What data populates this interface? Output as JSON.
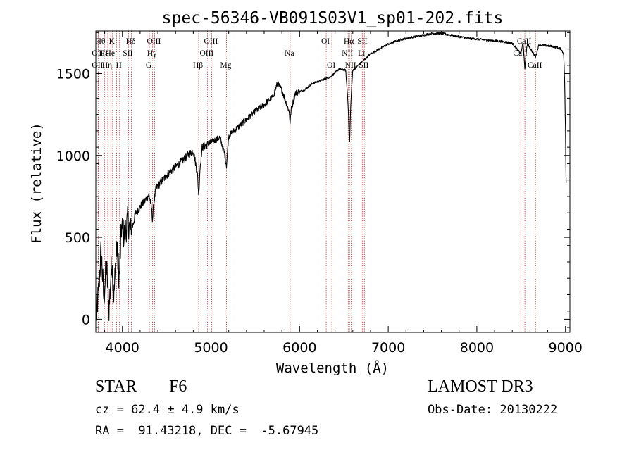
{
  "chart_data": {
    "type": "line",
    "title": "spec-56346-VB091S03V1_sp01-202.fits",
    "xlabel": "Wavelength (Å)",
    "ylabel": "Flux (relative)",
    "xlim": [
      3700,
      9050
    ],
    "ylim": [
      -80,
      1760
    ],
    "xticks": [
      4000,
      5000,
      6000,
      7000,
      8000,
      9000
    ],
    "xtick_labels": [
      "4000",
      "5000",
      "6000",
      "7000",
      "8000",
      "9000"
    ],
    "yticks": [
      0,
      500,
      1000,
      1500
    ],
    "ytick_labels": [
      "0",
      "500",
      "1000",
      "1500"
    ],
    "series": [
      {
        "name": "flux",
        "color": "#000000",
        "anchors": [
          [
            3705,
            30
          ],
          [
            3730,
            160
          ],
          [
            3760,
            420
          ],
          [
            3790,
            130
          ],
          [
            3820,
            330
          ],
          [
            3850,
            60
          ],
          [
            3880,
            370
          ],
          [
            3905,
            140
          ],
          [
            3935,
            450
          ],
          [
            3965,
            250
          ],
          [
            3990,
            560
          ],
          [
            4020,
            510
          ],
          [
            4060,
            600
          ],
          [
            4100,
            530
          ],
          [
            4150,
            650
          ],
          [
            4250,
            720
          ],
          [
            4300,
            760
          ],
          [
            4340,
            660
          ],
          [
            4380,
            800
          ],
          [
            4500,
            880
          ],
          [
            4600,
            930
          ],
          [
            4700,
            980
          ],
          [
            4800,
            1030
          ],
          [
            4861,
            850
          ],
          [
            4900,
            1050
          ],
          [
            5000,
            1080
          ],
          [
            5100,
            1110
          ],
          [
            5175,
            970
          ],
          [
            5200,
            1120
          ],
          [
            5300,
            1170
          ],
          [
            5400,
            1220
          ],
          [
            5500,
            1270
          ],
          [
            5600,
            1310
          ],
          [
            5700,
            1360
          ],
          [
            5750,
            1440
          ],
          [
            5800,
            1400
          ],
          [
            5893,
            1250
          ],
          [
            5950,
            1380
          ],
          [
            6050,
            1400
          ],
          [
            6150,
            1440
          ],
          [
            6250,
            1460
          ],
          [
            6350,
            1480
          ],
          [
            6450,
            1530
          ],
          [
            6520,
            1520
          ],
          [
            6563,
            1200
          ],
          [
            6600,
            1520
          ],
          [
            6700,
            1570
          ],
          [
            6800,
            1620
          ],
          [
            6900,
            1650
          ],
          [
            7000,
            1680
          ],
          [
            7100,
            1700
          ],
          [
            7200,
            1715
          ],
          [
            7300,
            1725
          ],
          [
            7400,
            1735
          ],
          [
            7500,
            1745
          ],
          [
            7600,
            1745
          ],
          [
            7700,
            1735
          ],
          [
            7800,
            1725
          ],
          [
            7900,
            1715
          ],
          [
            8000,
            1710
          ],
          [
            8100,
            1705
          ],
          [
            8200,
            1700
          ],
          [
            8300,
            1695
          ],
          [
            8400,
            1685
          ],
          [
            8498,
            1620
          ],
          [
            8520,
            1690
          ],
          [
            8542,
            1560
          ],
          [
            8570,
            1685
          ],
          [
            8662,
            1600
          ],
          [
            8700,
            1675
          ],
          [
            8800,
            1670
          ],
          [
            8900,
            1660
          ],
          [
            8950,
            1650
          ],
          [
            8980,
            1620
          ],
          [
            8990,
            1470
          ],
          [
            9000,
            1160
          ],
          [
            9005,
            880
          ],
          [
            9010,
            820
          ]
        ],
        "features": [
          {
            "center": 4861,
            "depth": 230,
            "width": 10
          },
          {
            "center": 4340,
            "depth": 140,
            "width": 10
          },
          {
            "center": 5175,
            "depth": 90,
            "width": 12
          },
          {
            "center": 5893,
            "depth": 150,
            "width": 6
          },
          {
            "center": 6563,
            "depth": 360,
            "width": 10
          },
          {
            "center": 8542,
            "depth": 130,
            "width": 6
          }
        ],
        "noise": [
          {
            "from": 3700,
            "to": 4100,
            "amp": 190
          },
          {
            "from": 4100,
            "to": 5000,
            "amp": 50
          },
          {
            "from": 5000,
            "to": 6000,
            "amp": 38
          },
          {
            "from": 6000,
            "to": 9050,
            "amp": 14
          }
        ]
      }
    ],
    "line_markers": [
      {
        "wavelength": 3727,
        "label": "OII",
        "row": 2
      },
      {
        "wavelength": 3727,
        "label": "OII",
        "row": 3
      },
      {
        "wavelength": 3760,
        "label": "Hθ",
        "row": 1
      },
      {
        "wavelength": 3798,
        "label": "Hε",
        "row": 2
      },
      {
        "wavelength": 3835,
        "label": "Hη",
        "row": 3
      },
      {
        "wavelength": 3869,
        "label": "He",
        "row": 2
      },
      {
        "wavelength": 3889,
        "label": "K",
        "row": 1
      },
      {
        "wavelength": 3934,
        "label": "",
        "row": 0
      },
      {
        "wavelength": 3968,
        "label": "H",
        "row": 3
      },
      {
        "wavelength": 4069,
        "label": "SII",
        "row": 2
      },
      {
        "wavelength": 4102,
        "label": "Hδ",
        "row": 1
      },
      {
        "wavelength": 4304,
        "label": "G",
        "row": 3
      },
      {
        "wavelength": 4340,
        "label": "Hγ",
        "row": 2
      },
      {
        "wavelength": 4363,
        "label": "OIII",
        "row": 1
      },
      {
        "wavelength": 4861,
        "label": "Hβ",
        "row": 3
      },
      {
        "wavelength": 4959,
        "label": "OIII",
        "row": 2
      },
      {
        "wavelength": 5007,
        "label": "OIII",
        "row": 1
      },
      {
        "wavelength": 5175,
        "label": "Mg",
        "row": 3
      },
      {
        "wavelength": 5893,
        "label": "Na",
        "row": 2
      },
      {
        "wavelength": 6300,
        "label": "OI",
        "row": 1
      },
      {
        "wavelength": 6364,
        "label": "OI",
        "row": 3
      },
      {
        "wavelength": 6548,
        "label": "NII",
        "row": 2
      },
      {
        "wavelength": 6563,
        "label": "Hα",
        "row": 1
      },
      {
        "wavelength": 6583,
        "label": "NII",
        "row": 3
      },
      {
        "wavelength": 6707,
        "label": "Li",
        "row": 2
      },
      {
        "wavelength": 6716,
        "label": "SII",
        "row": 1
      },
      {
        "wavelength": 6731,
        "label": "SII",
        "row": 3
      },
      {
        "wavelength": 8498,
        "label": "CaII",
        "row": 2
      },
      {
        "wavelength": 8542,
        "label": "CaII",
        "row": 1
      },
      {
        "wavelength": 8662,
        "label": "CaII",
        "row": 3
      }
    ]
  },
  "info": {
    "object_class": "STAR",
    "subclass": "F6",
    "survey": "LAMOST DR3",
    "redshift": "cz = 62.4 ± 4.9 km/s",
    "obs_date": "Obs-Date: 20130222",
    "coordinates": "RA =  91.43218, DEC =  -5.67945"
  },
  "colors": {
    "line_marker": "#b22222",
    "spectrum": "#000000",
    "axes": "#000000"
  }
}
